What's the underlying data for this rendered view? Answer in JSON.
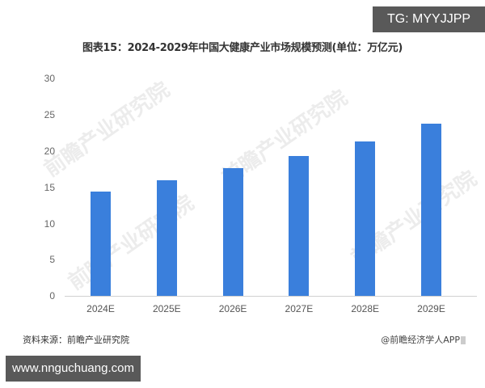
{
  "overlay": {
    "tg_badge": "TG: MYYJJPP",
    "url_badge": "www.nnguchuang.com"
  },
  "watermark_text": "前瞻产业研究院",
  "footer": {
    "source": "资料来源：前瞻产业研究院",
    "credit": "@前瞻经济学人APP"
  },
  "colors": {
    "bar": "#3a7fdc",
    "badge_bg": "#595959"
  },
  "chart_data": {
    "type": "bar",
    "title": "图表15：2024-2029年中国大健康产业市场规模预测(单位：万亿元)",
    "xlabel": "",
    "ylabel": "",
    "categories": [
      "2024E",
      "2025E",
      "2026E",
      "2027E",
      "2028E",
      "2029E"
    ],
    "values": [
      14.4,
      15.9,
      17.6,
      19.3,
      21.3,
      23.7
    ],
    "ylim": [
      0,
      30
    ],
    "yticks": [
      "0",
      "5",
      "10",
      "15",
      "20",
      "25",
      "30"
    ],
    "grid": false,
    "legend": null,
    "unit": "万亿元"
  }
}
